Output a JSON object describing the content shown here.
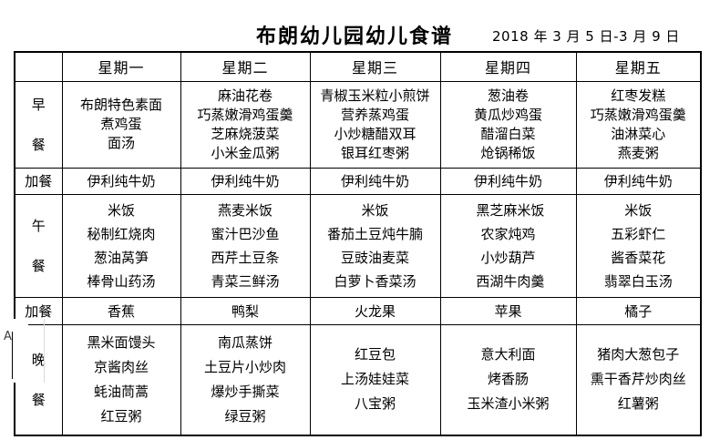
{
  "doc": {
    "title": "布朗幼儿园幼儿食谱",
    "date_range": "2018 年 3 月 5 日-3 月 9 日"
  },
  "artifact": {
    "label": "A"
  },
  "table": {
    "headers": [
      "",
      "星期一",
      "星期二",
      "星期三",
      "星期四",
      "星期五"
    ],
    "rows": [
      {
        "kind": "breakfast",
        "label": "早餐",
        "label_lines": [
          "早",
          "餐"
        ],
        "cells": [
          [
            "布朗特色素面",
            "煮鸡蛋",
            "面汤"
          ],
          [
            "麻油花卷",
            "巧蒸嫩滑鸡蛋羹",
            "芝麻烧菠菜",
            "小米金瓜粥"
          ],
          [
            "青椒玉米粒小煎饼",
            "营养蒸鸡蛋",
            "小炒糖醋双耳",
            "银耳红枣粥"
          ],
          [
            "葱油卷",
            "黄瓜炒鸡蛋",
            "醋溜白菜",
            "炝锅稀饭"
          ],
          [
            "红枣发糕",
            "巧蒸嫩滑鸡蛋羹",
            "油淋菜心",
            "燕麦粥"
          ]
        ]
      },
      {
        "kind": "snack1",
        "label": "加餐",
        "label_lines": [
          "加餐"
        ],
        "cells": [
          [
            "伊利纯牛奶"
          ],
          [
            "伊利纯牛奶"
          ],
          [
            "伊利纯牛奶"
          ],
          [
            "伊利纯牛奶"
          ],
          [
            "伊利纯牛奶"
          ]
        ]
      },
      {
        "kind": "lunch",
        "label": "午餐",
        "label_lines": [
          "午",
          "餐"
        ],
        "cells": [
          [
            "米饭",
            "秘制红烧肉",
            "葱油莴笋",
            "棒骨山药汤"
          ],
          [
            "燕麦米饭",
            "蜜汁巴沙鱼",
            "西芹土豆条",
            "青菜三鲜汤"
          ],
          [
            "米饭",
            "番茄土豆炖牛腩",
            "豆豉油麦菜",
            "白萝卜香菜汤"
          ],
          {
            "align": "left",
            "lines": [
              " 黑芝麻米饭",
              "农家炖鸡",
              "小炒葫芦",
              " 西湖牛肉羹"
            ]
          },
          [
            "米饭",
            "五彩虾仁",
            "酱香菜花",
            "翡翠白玉汤"
          ]
        ]
      },
      {
        "kind": "snack2",
        "label": "加餐",
        "label_lines": [
          "加餐"
        ],
        "cells": [
          [
            "香蕉"
          ],
          [
            "鸭梨"
          ],
          [
            "火龙果"
          ],
          [
            "苹果"
          ],
          [
            "橘子"
          ]
        ]
      },
      {
        "kind": "dinner",
        "label": "晚餐",
        "label_lines": [
          "晚",
          "餐"
        ],
        "cells": [
          [
            "黑米面馒头",
            "京酱肉丝",
            "蚝油茼蒿",
            "红豆粥"
          ],
          [
            "南瓜蒸饼",
            "土豆片小炒肉",
            "爆炒手撕菜",
            "绿豆粥"
          ],
          [
            "红豆包",
            "上汤娃娃菜",
            "八宝粥"
          ],
          [
            "意大利面",
            "烤香肠",
            "玉米渣小米粥"
          ],
          [
            "猪肉大葱包子",
            "熏干香芹炒肉丝",
            "红薯粥"
          ]
        ]
      }
    ]
  }
}
